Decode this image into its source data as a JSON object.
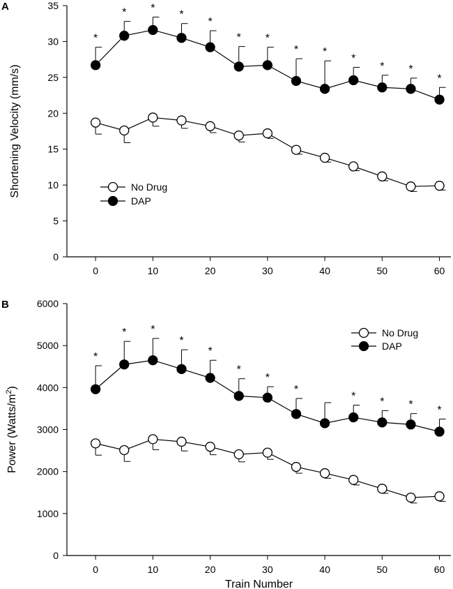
{
  "chart_data": [
    {
      "panel_label": "A",
      "type": "line",
      "xlabel": "",
      "ylabel": "Shortening Velocity (mm/s)",
      "ylim": [
        0,
        35
      ],
      "yticks": [
        0,
        5,
        10,
        15,
        20,
        25,
        30,
        35
      ],
      "xlim": [
        -5,
        62
      ],
      "xticks": [
        0,
        10,
        20,
        30,
        40,
        50,
        60
      ],
      "legend_position": "middle-left",
      "x": [
        0,
        5,
        10,
        15,
        20,
        25,
        30,
        35,
        40,
        45,
        50,
        55,
        60
      ],
      "series": [
        {
          "name": "No Drug",
          "marker": "open-circle",
          "values": [
            18.7,
            17.6,
            19.4,
            19.0,
            18.2,
            16.9,
            17.2,
            14.9,
            13.8,
            12.6,
            11.2,
            9.8,
            9.9
          ],
          "err_minus": [
            1.6,
            1.7,
            1.2,
            1.1,
            0.9,
            0.9,
            0.7,
            0.6,
            0.6,
            0.6,
            0.6,
            0.7,
            0.6
          ]
        },
        {
          "name": "DAP",
          "marker": "filled-circle",
          "values": [
            26.7,
            30.8,
            31.6,
            30.5,
            29.2,
            26.5,
            26.7,
            24.5,
            23.4,
            24.6,
            23.6,
            23.4,
            21.9
          ],
          "err_plus": [
            2.5,
            2.0,
            1.8,
            2.0,
            2.3,
            2.8,
            2.5,
            3.1,
            3.9,
            1.8,
            1.7,
            1.5,
            1.7
          ]
        }
      ],
      "significance_marker": "*",
      "significant_x": [
        0,
        5,
        10,
        15,
        20,
        25,
        30,
        35,
        40,
        45,
        50,
        55,
        60
      ]
    },
    {
      "panel_label": "B",
      "type": "line",
      "xlabel": "Train Number",
      "ylabel": "Power (Watts/m",
      "ylabel_superscript": "2",
      "ylabel_suffix": ")",
      "ylim": [
        0,
        6000
      ],
      "yticks": [
        0,
        1000,
        2000,
        3000,
        4000,
        5000,
        6000
      ],
      "xlim": [
        -5,
        62
      ],
      "xticks": [
        0,
        10,
        20,
        30,
        40,
        50,
        60
      ],
      "legend_position": "top-right",
      "x": [
        0,
        5,
        10,
        15,
        20,
        25,
        30,
        35,
        40,
        45,
        50,
        55,
        60
      ],
      "series": [
        {
          "name": "No Drug",
          "marker": "open-circle",
          "values": [
            2670,
            2510,
            2770,
            2710,
            2590,
            2410,
            2450,
            2110,
            1960,
            1800,
            1590,
            1380,
            1410
          ],
          "err_minus": [
            280,
            270,
            250,
            220,
            190,
            180,
            160,
            150,
            120,
            120,
            110,
            130,
            120
          ]
        },
        {
          "name": "DAP",
          "marker": "filled-circle",
          "values": [
            3960,
            4550,
            4650,
            4440,
            4230,
            3800,
            3760,
            3370,
            3150,
            3290,
            3170,
            3120,
            2950
          ],
          "err_plus": [
            560,
            550,
            520,
            460,
            420,
            410,
            260,
            370,
            490,
            290,
            280,
            260,
            300
          ]
        }
      ],
      "significance_marker": "*",
      "significant_x": [
        0,
        5,
        10,
        15,
        20,
        25,
        30,
        35,
        45,
        50,
        55,
        60
      ]
    }
  ]
}
